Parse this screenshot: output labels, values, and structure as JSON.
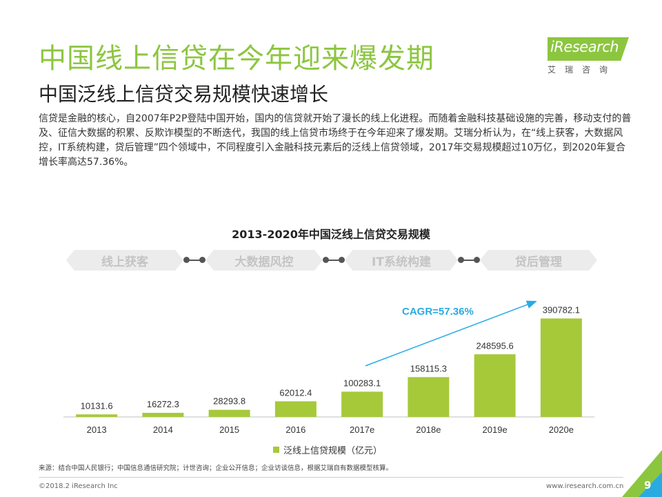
{
  "header": {
    "title": "中国线上信贷在今年迎来爆发期",
    "subtitle": "中国泛线上信贷交易规模快速增长"
  },
  "logo": {
    "word": "iResearch",
    "sub": "艾瑞咨询"
  },
  "intro": "信贷是金融的核心，自2007年P2P登陆中国开始，国内的信贷就开始了漫长的线上化进程。而随着金融科技基础设施的完善，移动支付的普及、征信大数据的积累、反欺诈模型的不断迭代，我国的线上信贷市场终于在今年迎来了爆发期。艾瑞分析认为，在“线上获客，大数据风控，IT系统构建，贷后管理”四个领域中，不同程度引入金融科技元素后的泛线上信贷领域，2017年交易规模超过10万亿，到2020年复合增长率高达57.36%。",
  "stages": [
    "线上获客",
    "大数据风控",
    "IT系统构建",
    "贷后管理"
  ],
  "chart_data": {
    "type": "bar",
    "title": "2013-2020年中国泛线上信贷交易规模",
    "categories": [
      "2013",
      "2014",
      "2015",
      "2016",
      "2017e",
      "2018e",
      "2019e",
      "2020e"
    ],
    "series": [
      {
        "name": "泛线上信贷规模（亿元）",
        "values": [
          10131.6,
          16272.3,
          28293.8,
          62012.4,
          100283.1,
          158115.3,
          248595.6,
          390782.1
        ]
      }
    ],
    "value_labels": [
      "10131.6",
      "16272.3",
      "28293.8",
      "62012.4",
      "100283.1",
      "158115.3",
      "248595.6",
      "390782.1"
    ],
    "annotation": "CAGR=57.36%",
    "ylim": [
      0,
      400000
    ],
    "bar_color": "#a6c93a",
    "arrow_color": "#29abe2",
    "annotation_color": "#29abe2",
    "legend_position": "bottom"
  },
  "footer": {
    "source": "来源：结合中国人民银行；中国信息通信研究院；计世咨询；企业公开信息；企业访谈信息，根据艾瑞自有数据模型核算。",
    "copyright": "©2018.2 iResearch Inc",
    "site": "www.iresearch.com.cn",
    "page": "9"
  }
}
